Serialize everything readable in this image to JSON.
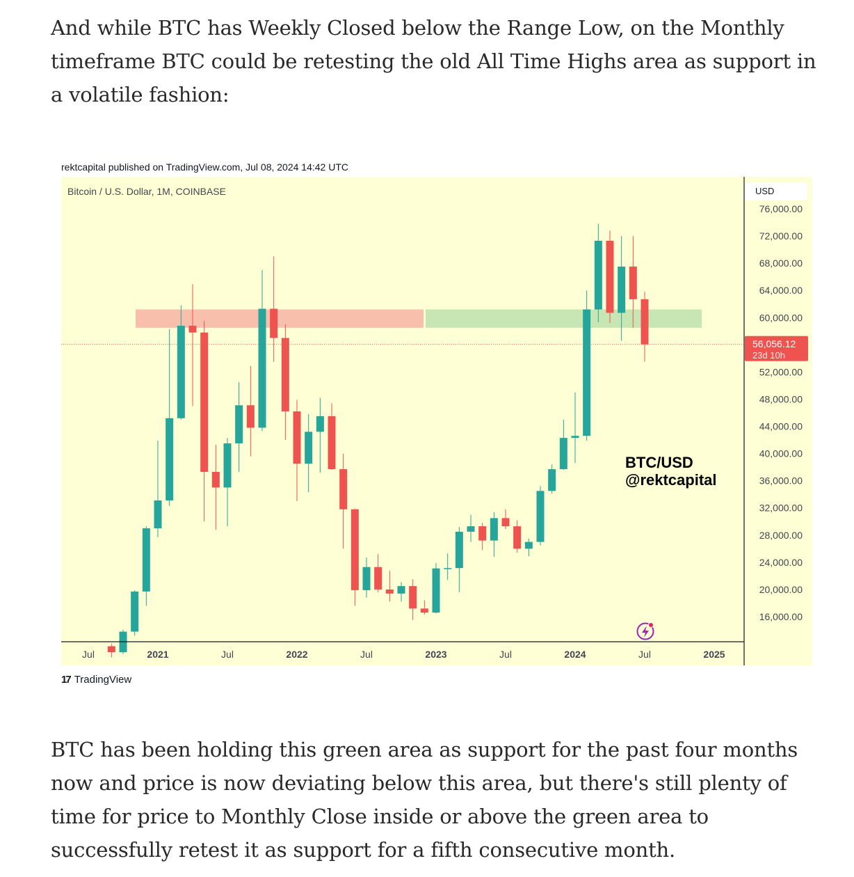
{
  "article": {
    "paragraph_1": "And while BTC has Weekly Closed below the Range Low, on the Monthly timeframe BTC could be retesting the old All Time Highs area as support in a volatile fashion:",
    "paragraph_2": "BTC has been holding this green area as support for the past four months now and price is now deviating below this area, but there's still plenty of time for price to Monthly Close inside or above the green area to successfully retest it as support for a fifth consecutive month."
  },
  "chart_meta": {
    "credit": "rektcapital published on TradingView.com, Jul 08, 2024 14:42 UTC",
    "footer_brand": "TradingView",
    "footer_mark": "17"
  },
  "colors": {
    "up": "#26a69a",
    "down": "#ef5350",
    "chart_bg": "#ffffd5",
    "red_zone": "#f9bfad",
    "green_zone": "#c8e6b4",
    "price_tag": "#ef5350",
    "text": "#131722",
    "axis_text": "#434651"
  },
  "chart_data": {
    "type": "candlestick",
    "title": "Bitcoin / U.S. Dollar, 1M, COINBASE",
    "currency": "USD",
    "annotation_line1": "BTC/USD",
    "annotation_line2": "@rektcapital",
    "ylim": [
      12500,
      78500
    ],
    "y_ticks": [
      "16,000.00",
      "20,000.00",
      "24,000.00",
      "28,000.00",
      "32,000.00",
      "36,000.00",
      "40,000.00",
      "44,000.00",
      "48,000.00",
      "52,000.00",
      "60,000.00",
      "64,000.00",
      "68,000.00",
      "72,000.00",
      "76,000.00"
    ],
    "x_ticks": [
      {
        "label": "Jul",
        "date": "2020-07",
        "bold": false
      },
      {
        "label": "2021",
        "date": "2021-01",
        "bold": true
      },
      {
        "label": "Jul",
        "date": "2021-07",
        "bold": false
      },
      {
        "label": "2022",
        "date": "2022-01",
        "bold": true
      },
      {
        "label": "Jul",
        "date": "2022-07",
        "bold": false
      },
      {
        "label": "2023",
        "date": "2023-01",
        "bold": true
      },
      {
        "label": "Jul",
        "date": "2023-07",
        "bold": false
      },
      {
        "label": "2024",
        "date": "2024-01",
        "bold": true
      },
      {
        "label": "Jul",
        "date": "2024-07",
        "bold": false
      },
      {
        "label": "2025",
        "date": "2025-01",
        "bold": true
      }
    ],
    "x_range": [
      "2020-04",
      "2025-02"
    ],
    "current_price": {
      "value": 56056.12,
      "label": "56,056.12",
      "countdown": "23d 10h"
    },
    "zones": [
      {
        "name": "range-low-resistance",
        "from": "2020-11",
        "to": "2022-11",
        "low": 58500,
        "high": 61200,
        "color": "red_zone"
      },
      {
        "name": "support-area",
        "from": "2022-11",
        "to": "2024-12",
        "low": 58500,
        "high": 61200,
        "color": "green_zone"
      }
    ],
    "candles": [
      {
        "date": "2020-09",
        "open": 11650,
        "high": 12050,
        "low": 10000,
        "close": 10780
      },
      {
        "date": "2020-10",
        "open": 10780,
        "high": 14100,
        "low": 10500,
        "close": 13800
      },
      {
        "date": "2020-11",
        "open": 13800,
        "high": 19900,
        "low": 13200,
        "close": 19700
      },
      {
        "date": "2020-12",
        "open": 19700,
        "high": 29300,
        "low": 17600,
        "close": 29000
      },
      {
        "date": "2021-01",
        "open": 29000,
        "high": 41900,
        "low": 27700,
        "close": 33100
      },
      {
        "date": "2021-02",
        "open": 33100,
        "high": 58300,
        "low": 32300,
        "close": 45200
      },
      {
        "date": "2021-03",
        "open": 45200,
        "high": 61800,
        "low": 45000,
        "close": 58800
      },
      {
        "date": "2021-04",
        "open": 58800,
        "high": 64900,
        "low": 47000,
        "close": 57800
      },
      {
        "date": "2021-05",
        "open": 57800,
        "high": 59500,
        "low": 30000,
        "close": 37300
      },
      {
        "date": "2021-06",
        "open": 37300,
        "high": 41300,
        "low": 28800,
        "close": 35000
      },
      {
        "date": "2021-07",
        "open": 35000,
        "high": 42300,
        "low": 29300,
        "close": 41500
      },
      {
        "date": "2021-08",
        "open": 41500,
        "high": 50500,
        "low": 37300,
        "close": 47100
      },
      {
        "date": "2021-09",
        "open": 47100,
        "high": 52900,
        "low": 39600,
        "close": 43800
      },
      {
        "date": "2021-10",
        "open": 43800,
        "high": 67000,
        "low": 43300,
        "close": 61300
      },
      {
        "date": "2021-11",
        "open": 61300,
        "high": 69000,
        "low": 53500,
        "close": 57000
      },
      {
        "date": "2021-12",
        "open": 57000,
        "high": 59000,
        "low": 42000,
        "close": 46200
      },
      {
        "date": "2022-01",
        "open": 46200,
        "high": 47900,
        "low": 33000,
        "close": 38500
      },
      {
        "date": "2022-02",
        "open": 38500,
        "high": 45800,
        "low": 34300,
        "close": 43200
      },
      {
        "date": "2022-03",
        "open": 43200,
        "high": 48200,
        "low": 37200,
        "close": 45500
      },
      {
        "date": "2022-04",
        "open": 45500,
        "high": 47400,
        "low": 37600,
        "close": 37700
      },
      {
        "date": "2022-05",
        "open": 37700,
        "high": 40000,
        "low": 26000,
        "close": 31800
      },
      {
        "date": "2022-06",
        "open": 31800,
        "high": 31900,
        "low": 17600,
        "close": 19900
      },
      {
        "date": "2022-07",
        "open": 19900,
        "high": 24700,
        "low": 18800,
        "close": 23300
      },
      {
        "date": "2022-08",
        "open": 23300,
        "high": 25200,
        "low": 19600,
        "close": 20000
      },
      {
        "date": "2022-09",
        "open": 20000,
        "high": 22800,
        "low": 18200,
        "close": 19400
      },
      {
        "date": "2022-10",
        "open": 19400,
        "high": 21100,
        "low": 18200,
        "close": 20500
      },
      {
        "date": "2022-11",
        "open": 20500,
        "high": 21500,
        "low": 15500,
        "close": 17200
      },
      {
        "date": "2022-12",
        "open": 17200,
        "high": 18400,
        "low": 16300,
        "close": 16600
      },
      {
        "date": "2023-01",
        "open": 16600,
        "high": 23900,
        "low": 16500,
        "close": 23100
      },
      {
        "date": "2023-02",
        "open": 23100,
        "high": 25300,
        "low": 21400,
        "close": 23150
      },
      {
        "date": "2023-03",
        "open": 23150,
        "high": 29200,
        "low": 19600,
        "close": 28500
      },
      {
        "date": "2023-04",
        "open": 28500,
        "high": 31000,
        "low": 27000,
        "close": 29300
      },
      {
        "date": "2023-05",
        "open": 29300,
        "high": 29800,
        "low": 25800,
        "close": 27200
      },
      {
        "date": "2023-06",
        "open": 27200,
        "high": 31400,
        "low": 24800,
        "close": 30500
      },
      {
        "date": "2023-07",
        "open": 30500,
        "high": 31800,
        "low": 28900,
        "close": 29300
      },
      {
        "date": "2023-08",
        "open": 29300,
        "high": 30200,
        "low": 25400,
        "close": 26000
      },
      {
        "date": "2023-09",
        "open": 26000,
        "high": 27500,
        "low": 24900,
        "close": 27000
      },
      {
        "date": "2023-10",
        "open": 27000,
        "high": 35200,
        "low": 26500,
        "close": 34500
      },
      {
        "date": "2023-11",
        "open": 34500,
        "high": 38400,
        "low": 34100,
        "close": 37700
      },
      {
        "date": "2023-12",
        "open": 37700,
        "high": 45000,
        "low": 37600,
        "close": 42300
      },
      {
        "date": "2024-01",
        "open": 42300,
        "high": 49000,
        "low": 38600,
        "close": 42600
      },
      {
        "date": "2024-02",
        "open": 42600,
        "high": 64000,
        "low": 41900,
        "close": 61200
      },
      {
        "date": "2024-03",
        "open": 61200,
        "high": 73800,
        "low": 59300,
        "close": 71300
      },
      {
        "date": "2024-04",
        "open": 71300,
        "high": 72800,
        "low": 59200,
        "close": 60700
      },
      {
        "date": "2024-05",
        "open": 60700,
        "high": 72000,
        "low": 56600,
        "close": 67500
      },
      {
        "date": "2024-06",
        "open": 67500,
        "high": 72000,
        "low": 58500,
        "close": 62700
      },
      {
        "date": "2024-07",
        "open": 62700,
        "high": 63800,
        "low": 53500,
        "close": 56056.12
      }
    ]
  }
}
